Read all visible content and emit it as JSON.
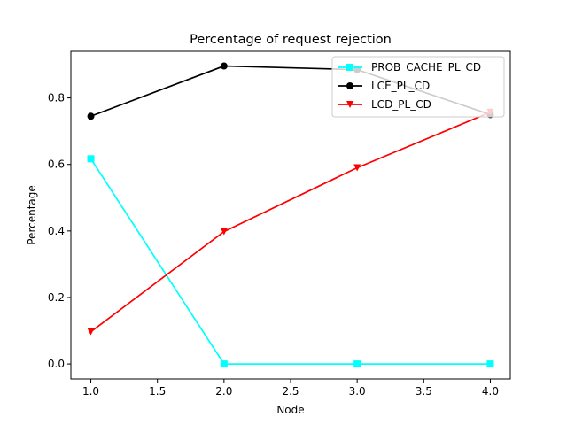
{
  "chart_data": {
    "type": "line",
    "title": "Percentage of request rejection",
    "xlabel": "Node",
    "ylabel": "Percentage",
    "xlim": [
      0.85,
      4.15
    ],
    "ylim": [
      -0.045,
      0.94
    ],
    "xticks": [
      1.0,
      1.5,
      2.0,
      2.5,
      3.0,
      3.5,
      4.0
    ],
    "xtick_labels": [
      "1.0",
      "1.5",
      "2.0",
      "2.5",
      "3.0",
      "3.5",
      "4.0"
    ],
    "yticks": [
      0.0,
      0.2,
      0.4,
      0.6,
      0.8
    ],
    "ytick_labels": [
      "0.0",
      "0.2",
      "0.4",
      "0.6",
      "0.8"
    ],
    "grid": false,
    "legend_position": "top-right",
    "x": [
      1,
      2,
      3,
      4
    ],
    "series": [
      {
        "name": "PROB_CACHE_PL_CD",
        "values": [
          0.617,
          0.0,
          0.0,
          0.0
        ],
        "color": "#00ffff",
        "marker": "square"
      },
      {
        "name": "LCE_PL_CD",
        "values": [
          0.745,
          0.896,
          0.885,
          0.75
        ],
        "color": "#000000",
        "marker": "circle"
      },
      {
        "name": "LCD_PL_CD",
        "values": [
          0.097,
          0.398,
          0.59,
          0.757
        ],
        "color": "#ff0000",
        "marker": "triangle-down"
      }
    ]
  }
}
